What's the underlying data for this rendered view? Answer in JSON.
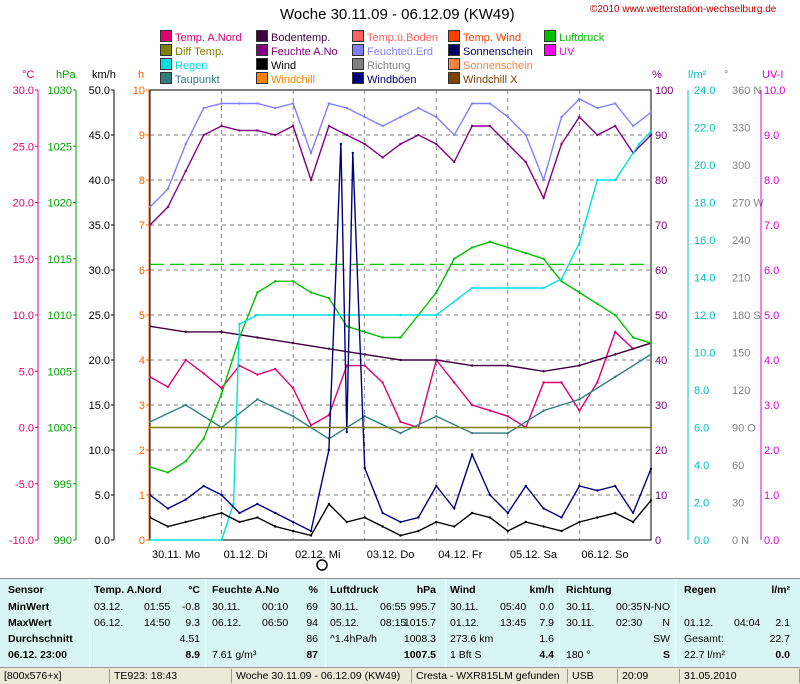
{
  "title": "Woche 30.11.09 - 06.12.09 (KW49)",
  "copyright": "©2010 www.wetterstation-wechselburg.de",
  "legend": [
    {
      "label": "Temp. A.Nord",
      "color": "#e0006e"
    },
    {
      "label": "Diff Temp.",
      "color": "#808000"
    },
    {
      "label": "Regen",
      "color": "#00e0e0"
    },
    {
      "label": "Taupunkt",
      "color": "#2f7f7f"
    },
    {
      "label": "Bodentemp.",
      "color": "#400040"
    },
    {
      "label": "Feuchte A.No",
      "color": "#800080"
    },
    {
      "label": "Wind",
      "color": "#000000"
    },
    {
      "label": "Windchill",
      "color": "#ff8000"
    },
    {
      "label": "Temp.ü.Boden",
      "color": "#ff6060"
    },
    {
      "label": "Feuchteü.Erd",
      "color": "#8080ff"
    },
    {
      "label": "Richtung",
      "color": "#808080"
    },
    {
      "label": "Windböen",
      "color": "#000080"
    },
    {
      "label": "Temp. Wind",
      "color": "#ff4000"
    },
    {
      "label": "Sonnenschein",
      "color": "#000060"
    },
    {
      "label": "Sonnenschein",
      "color": "#ff8040"
    },
    {
      "label": "Windchill X",
      "color": "#804000"
    },
    {
      "label": "Luftdruck",
      "color": "#00c000"
    },
    {
      "label": "UV",
      "color": "#ff00ff"
    }
  ],
  "axes": {
    "left_units": [
      {
        "unit": "°C",
        "color": "#e0006e"
      },
      {
        "unit": "hPa",
        "color": "#00a000"
      },
      {
        "unit": "km/h",
        "color": "#000000"
      },
      {
        "unit": "h",
        "color": "#ff6000"
      }
    ],
    "right_units": [
      {
        "unit": "%",
        "color": "#800080"
      },
      {
        "unit": "l/m²",
        "color": "#00c0c0"
      },
      {
        "unit": "°",
        "color": "#808080"
      },
      {
        "unit": "UV-I",
        "color": "#e000e0"
      }
    ],
    "temp_ticks": [
      "30.0",
      "25.0",
      "20.0",
      "15.0",
      "10.0",
      "5.0",
      "0.0",
      "-5.0",
      "-10.0"
    ],
    "hpa_ticks": [
      "1030",
      "1025",
      "1020",
      "1015",
      "1010",
      "1005",
      "1000",
      "995",
      "990"
    ],
    "kmh_ticks": [
      "50.0",
      "45.0",
      "40.0",
      "35.0",
      "30.0",
      "25.0",
      "20.0",
      "15.0",
      "10.0",
      "5.0",
      "0.0"
    ],
    "h_ticks": [
      "10",
      "9",
      "8",
      "7",
      "6",
      "5",
      "4",
      "3",
      "2",
      "1",
      "0"
    ],
    "pct_ticks": [
      "100",
      "90",
      "80",
      "70",
      "60",
      "50",
      "40",
      "30",
      "20",
      "10",
      "0"
    ],
    "rain_ticks": [
      "24.0",
      "22.0",
      "20.0",
      "18.0",
      "16.0",
      "14.0",
      "12.0",
      "10.0",
      "8.0",
      "6.0",
      "4.0",
      "2.0",
      "0.0"
    ],
    "dir_ticks": [
      "360 N",
      "330",
      "300",
      "270 W",
      "240",
      "210",
      "180 S",
      "150",
      "120",
      "90 O",
      "60",
      "30",
      "0 N"
    ],
    "uv_ticks": [
      "10.0",
      "9.0",
      "8.0",
      "7.0",
      "6.0",
      "5.0",
      "4.0",
      "3.0",
      "2.0",
      "1.0",
      "0.0"
    ],
    "day_labels": [
      "30.11. Mo",
      "01.12. Di",
      "02.12. Mi",
      "03.12. Do",
      "04.12. Fr",
      "05.12. Sa",
      "06.12. So"
    ]
  },
  "chart_data": {
    "type": "line",
    "title": "Woche 30.11.09 - 06.12.09 (KW49)",
    "x_unit": "hours since 30.11. 00:00",
    "series": [
      {
        "name": "Temp. A.Nord",
        "unit": "°C",
        "color": "#e0006e",
        "x": [
          0,
          6,
          12,
          18,
          24,
          30,
          36,
          42,
          48,
          54,
          60,
          66,
          72,
          78,
          84,
          90,
          96,
          102,
          108,
          114,
          120,
          126,
          132,
          138,
          144,
          150,
          156,
          162,
          168
        ],
        "y": [
          4.5,
          3.6,
          6.0,
          4.8,
          3.5,
          5.5,
          4.7,
          5.2,
          3.5,
          0.2,
          1.1,
          5.5,
          5.5,
          4.0,
          0.5,
          0.0,
          6.0,
          4.0,
          2.0,
          1.5,
          1.0,
          0.0,
          4.0,
          4.0,
          1.5,
          4.0,
          8.5,
          7.0,
          7.5
        ]
      },
      {
        "name": "Taupunkt",
        "unit": "°C",
        "color": "#2f7f7f",
        "x": [
          0,
          12,
          24,
          36,
          48,
          60,
          72,
          84,
          96,
          108,
          120,
          132,
          144,
          156,
          168
        ],
        "y": [
          0.5,
          2.0,
          0.0,
          2.5,
          1.0,
          -1.0,
          1.0,
          -0.5,
          1.0,
          -0.5,
          -0.5,
          1.5,
          2.5,
          4.5,
          6.5
        ]
      },
      {
        "name": "Bodentemp.",
        "unit": "°C",
        "color": "#400040",
        "x": [
          0,
          12,
          24,
          36,
          48,
          60,
          72,
          84,
          96,
          108,
          120,
          132,
          144,
          156,
          168
        ],
        "y": [
          9.0,
          8.5,
          8.5,
          8.0,
          7.5,
          7.0,
          6.5,
          6.0,
          6.0,
          5.5,
          5.5,
          5.0,
          5.5,
          6.5,
          7.5
        ]
      },
      {
        "name": "Luftdruck",
        "unit": "hPa",
        "color": "#00c000",
        "x": [
          0,
          6,
          12,
          18,
          24,
          30,
          36,
          42,
          48,
          54,
          60,
          66,
          72,
          78,
          84,
          90,
          96,
          102,
          108,
          114,
          120,
          126,
          132,
          138,
          144,
          150,
          156,
          162,
          168
        ],
        "y": [
          996.5,
          996,
          997,
          999,
          1003,
          1008,
          1012,
          1013,
          1013,
          1012,
          1011.5,
          1009,
          1008.5,
          1008,
          1008,
          1010,
          1012,
          1015,
          1016,
          1016.5,
          1016,
          1015.5,
          1015,
          1013,
          1012,
          1011,
          1010,
          1008,
          1007.5
        ]
      },
      {
        "name": "Feuchte A.No",
        "unit": "%",
        "color": "#800080",
        "x": [
          0,
          6,
          12,
          18,
          24,
          30,
          36,
          42,
          48,
          54,
          60,
          66,
          72,
          78,
          84,
          90,
          96,
          102,
          108,
          114,
          120,
          126,
          132,
          138,
          144,
          150,
          156,
          162,
          168
        ],
        "y": [
          70,
          74,
          82,
          90,
          92,
          91,
          91,
          90,
          92,
          80,
          92,
          90,
          88,
          85,
          88,
          90,
          88,
          84,
          92,
          92,
          88,
          84,
          76,
          88,
          94,
          90,
          92,
          86,
          90
        ]
      },
      {
        "name": "Feuchteü.Erd",
        "unit": "%",
        "color": "#8080ff",
        "x": [
          0,
          6,
          12,
          18,
          24,
          30,
          36,
          42,
          48,
          54,
          60,
          66,
          72,
          78,
          84,
          90,
          96,
          102,
          108,
          114,
          120,
          126,
          132,
          138,
          144,
          150,
          156,
          162,
          168
        ],
        "y": [
          74,
          78,
          88,
          96,
          97,
          97,
          97,
          96,
          97,
          86,
          97,
          96,
          94,
          92,
          94,
          96,
          94,
          90,
          97,
          97,
          94,
          90,
          80,
          94,
          98,
          96,
          97,
          92,
          95
        ]
      },
      {
        "name": "Regen",
        "unit": "l/m²",
        "color": "#00e0e0",
        "x": [
          0,
          24,
          28,
          30,
          36,
          60,
          84,
          96,
          108,
          120,
          132,
          138,
          144,
          150,
          156,
          164,
          168
        ],
        "y": [
          0,
          0,
          2.0,
          12.0,
          12.5,
          12.5,
          12.5,
          12.5,
          14.0,
          14.0,
          14.0,
          14.5,
          16.5,
          20.0,
          20.0,
          22.0,
          22.7
        ]
      },
      {
        "name": "Wind",
        "unit": "km/h",
        "color": "#000000",
        "x": [
          0,
          6,
          12,
          18,
          24,
          30,
          36,
          42,
          48,
          54,
          60,
          66,
          72,
          78,
          84,
          90,
          96,
          102,
          108,
          114,
          120,
          126,
          132,
          138,
          144,
          150,
          156,
          162,
          168
        ],
        "y": [
          2.5,
          1.5,
          2.0,
          2.5,
          3.0,
          2.0,
          2.5,
          1.5,
          1.0,
          0.5,
          4.0,
          2.0,
          2.5,
          1.5,
          0.5,
          1.0,
          2.0,
          1.5,
          3.0,
          2.5,
          1.0,
          2.0,
          1.5,
          1.0,
          2.0,
          2.5,
          3.0,
          2.0,
          4.4
        ]
      },
      {
        "name": "Windböen",
        "unit": "km/h",
        "color": "#000080",
        "x": [
          0,
          6,
          12,
          18,
          24,
          30,
          36,
          42,
          48,
          54,
          60,
          64,
          66,
          68,
          72,
          78,
          84,
          90,
          96,
          102,
          108,
          114,
          120,
          126,
          132,
          138,
          144,
          150,
          156,
          162,
          168
        ],
        "y": [
          5.0,
          3.5,
          4.5,
          6.0,
          5.0,
          3.0,
          4.0,
          3.0,
          2.0,
          1.0,
          10.0,
          44.0,
          12.0,
          43.0,
          8.0,
          3.0,
          2.0,
          2.5,
          6.0,
          3.5,
          9.5,
          5.0,
          3.0,
          6.0,
          3.5,
          2.5,
          6.0,
          5.5,
          6.0,
          3.0,
          7.9
        ]
      },
      {
        "name": "Diff Temp.",
        "unit": "°C",
        "color": "#808000",
        "x": [
          0,
          168
        ],
        "y": [
          0.0,
          0.0
        ]
      }
    ],
    "reference_lines": [
      {
        "name": "Luftdruck Mittel",
        "unit": "hPa",
        "value": 1014.5
      }
    ],
    "ylims": {
      "temp": [
        -10,
        30
      ],
      "hpa": [
        990,
        1030
      ],
      "kmh": [
        0,
        50
      ],
      "h": [
        0,
        10
      ],
      "pct": [
        0,
        100
      ],
      "rain": [
        0,
        25
      ],
      "dir": [
        0,
        360
      ],
      "uv": [
        0,
        10
      ]
    }
  },
  "stats": {
    "headers": [
      {
        "text": "Sensor"
      },
      {
        "text": "Temp. A.Nord"
      },
      {
        "text": "°C"
      },
      {
        "text": "Feuchte A.No"
      },
      {
        "text": "%"
      },
      {
        "text": "Luftdruck"
      },
      {
        "text": "hPa"
      },
      {
        "text": "Wind"
      },
      {
        "text": "km/h"
      },
      {
        "text": "Richtung"
      },
      {
        "text": "Regen"
      },
      {
        "text": "l/m²"
      }
    ],
    "row_labels": [
      "MinWert",
      "MaxWert",
      "Durchschnitt",
      "06.12. 23:00"
    ],
    "temp": [
      [
        "03.12.",
        "01:55",
        "-0.8"
      ],
      [
        "06.12.",
        "14:50",
        "9.3"
      ],
      [
        "",
        "",
        "4.51"
      ],
      [
        "",
        "",
        "8.9"
      ]
    ],
    "feuchte": [
      [
        "30.11.",
        "00:10",
        "69"
      ],
      [
        "06.12.",
        "06:50",
        "94"
      ],
      [
        "",
        "",
        "86"
      ],
      [
        "7.61 g/m³",
        "",
        "87"
      ]
    ],
    "druck": [
      [
        "30.11.",
        "06:55",
        "995.7"
      ],
      [
        "05.12.",
        "08:15",
        "1015.7"
      ],
      [
        "^1.4hPa/h",
        "",
        "1008.3"
      ],
      [
        "",
        "",
        "1007.5"
      ]
    ],
    "wind": [
      [
        "30.11.",
        "05:40",
        "0.0"
      ],
      [
        "01.12.",
        "13:45",
        "7.9"
      ],
      [
        "273.6 km",
        "",
        "1.6"
      ],
      [
        "1 Bft S",
        "",
        "4.4"
      ]
    ],
    "richtung": [
      [
        "30.11.",
        "00:35",
        "N-NO"
      ],
      [
        "30.11.",
        "02:30",
        "N"
      ],
      [
        "",
        "",
        "SW"
      ],
      [
        "180 °",
        "",
        "S"
      ]
    ],
    "regen": [
      [
        "",
        "",
        ""
      ],
      [
        "01.12.",
        "04:04",
        "2.1"
      ],
      [
        "Gesamt:",
        "",
        "22.7"
      ],
      [
        "22.7 l/m²",
        "",
        "0.0"
      ]
    ]
  },
  "statusbar": [
    {
      "text": "[800x576+x]"
    },
    {
      "text": "TE923: 18:43"
    },
    {
      "text": "Woche 30.11.09 - 06.12.09 (KW49)"
    },
    {
      "text": "Cresta - WXR815LM gefunden"
    },
    {
      "text": "USB"
    },
    {
      "text": "20:09"
    },
    {
      "text": "31.05.2010"
    }
  ]
}
